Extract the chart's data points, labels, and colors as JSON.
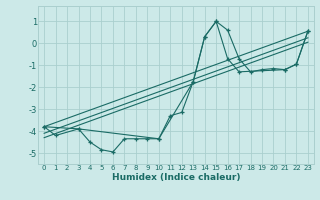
{
  "xlabel": "Humidex (Indice chaleur)",
  "bg_color": "#cce9e8",
  "grid_color": "#aacfce",
  "line_color": "#1a6b65",
  "xlim": [
    -0.5,
    23.5
  ],
  "ylim": [
    -5.5,
    1.7
  ],
  "yticks": [
    1,
    0,
    -1,
    -2,
    -3,
    -4,
    -5
  ],
  "xticks": [
    0,
    1,
    2,
    3,
    4,
    5,
    6,
    7,
    8,
    9,
    10,
    11,
    12,
    13,
    14,
    15,
    16,
    17,
    18,
    19,
    20,
    21,
    22,
    23
  ],
  "series": {
    "wiggly": {
      "x": [
        0,
        1,
        3,
        4,
        5,
        6,
        7,
        8,
        9,
        10,
        11,
        12,
        13,
        14,
        15,
        16,
        17,
        18,
        19,
        20,
        21,
        22,
        23
      ],
      "y": [
        -3.8,
        -4.2,
        -3.9,
        -4.5,
        -4.85,
        -4.95,
        -4.35,
        -4.35,
        -4.35,
        -4.35,
        -3.3,
        -3.15,
        -1.75,
        0.3,
        1.0,
        0.6,
        -0.7,
        -1.3,
        -1.2,
        -1.15,
        -1.2,
        -0.95,
        0.55
      ]
    },
    "peak_line": {
      "x": [
        0,
        3,
        10,
        13,
        14,
        15,
        16,
        17,
        21,
        22,
        23
      ],
      "y": [
        -3.8,
        -3.9,
        -4.35,
        -1.75,
        0.3,
        1.0,
        -0.7,
        -1.3,
        -1.2,
        -0.95,
        0.55
      ]
    },
    "diag1": {
      "x": [
        0,
        23
      ],
      "y": [
        -3.8,
        0.55
      ]
    },
    "diag2": {
      "x": [
        0,
        23
      ],
      "y": [
        -4.1,
        0.25
      ]
    },
    "diag3": {
      "x": [
        0,
        23
      ],
      "y": [
        -4.3,
        0.05
      ]
    }
  }
}
